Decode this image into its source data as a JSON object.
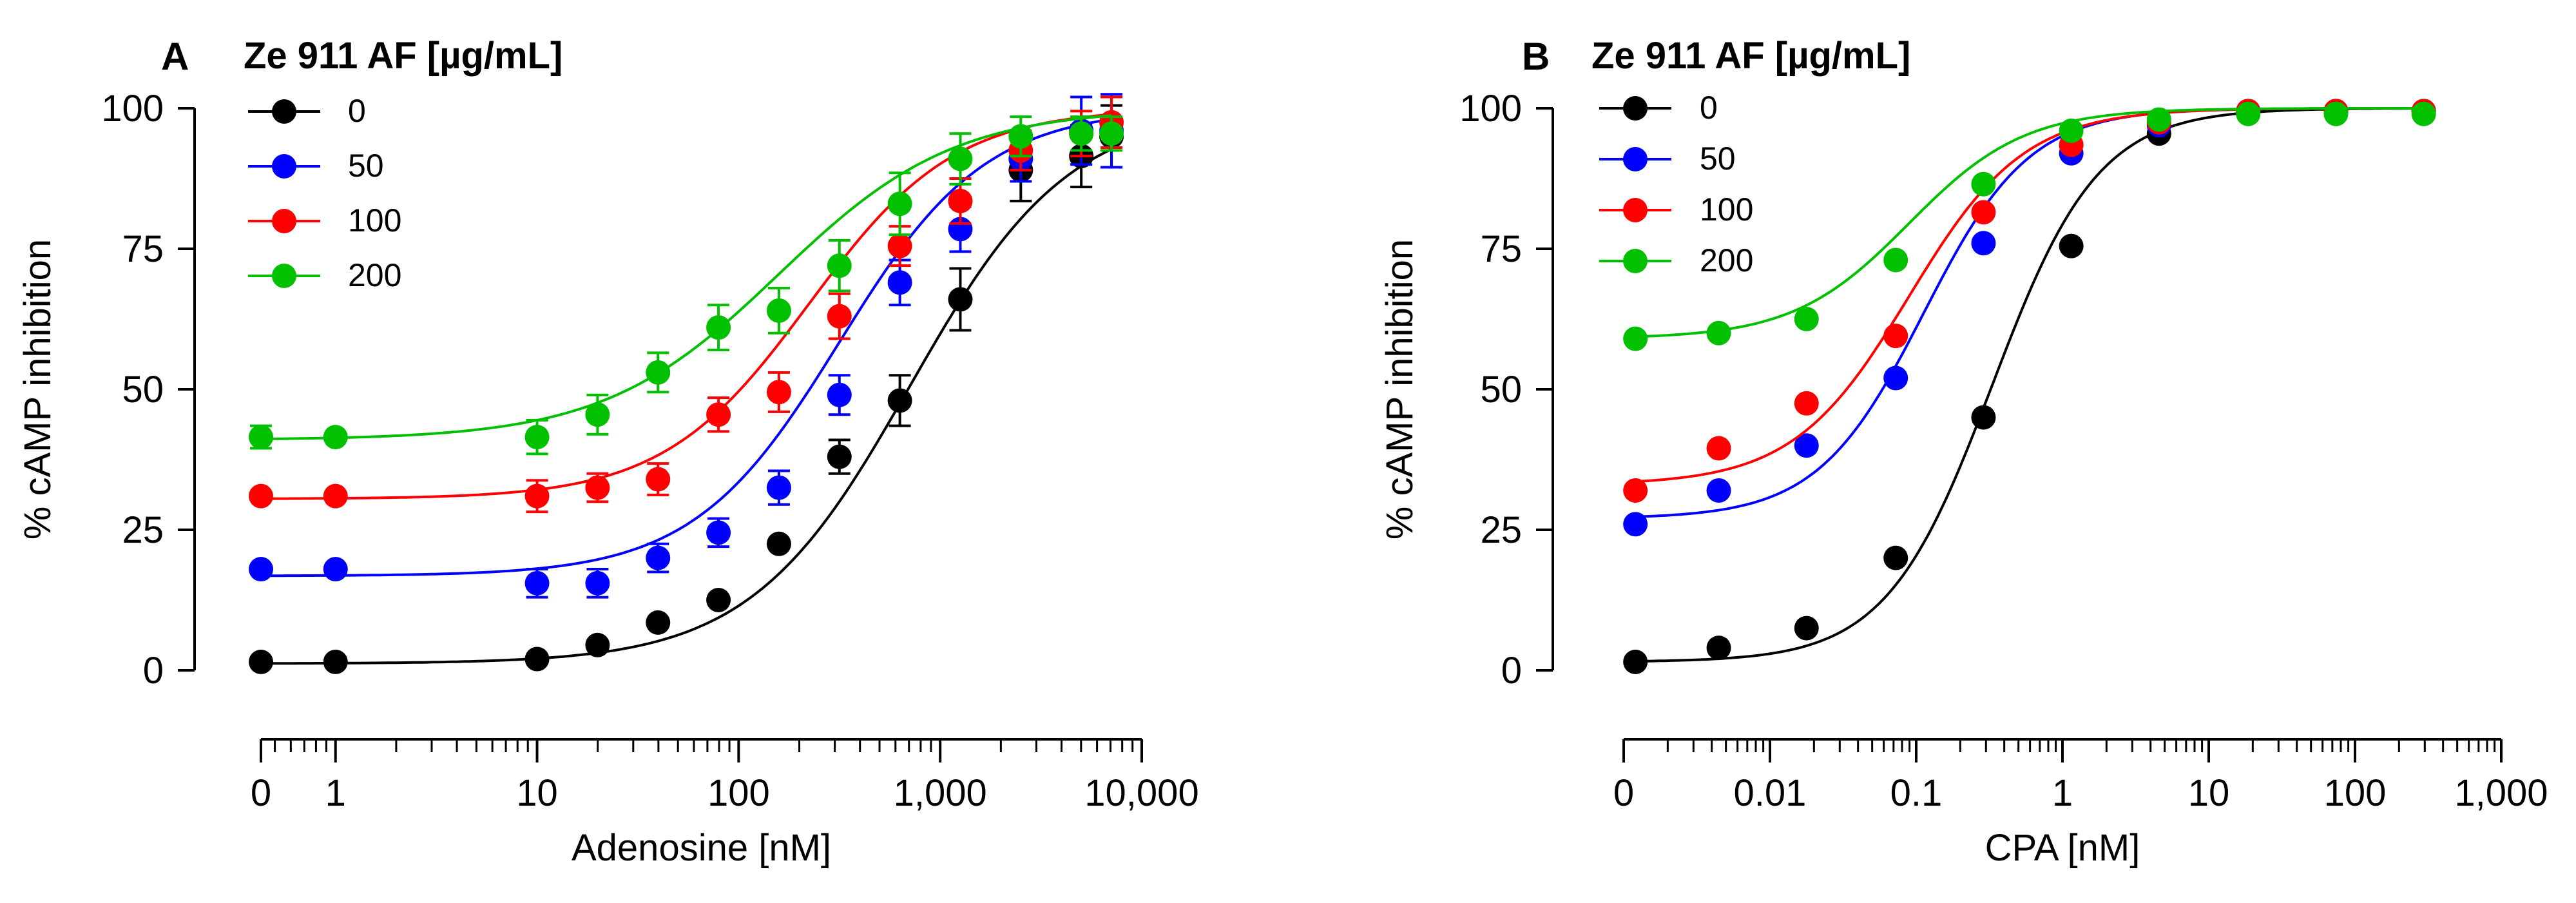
{
  "figure": {
    "caption_panels": [
      "A",
      "B"
    ]
  },
  "chart_data": [
    {
      "panel_label": "A",
      "type": "scatter",
      "fit": "sigmoid",
      "legend_title": "Ze 911 AF [µg/mL]",
      "xlabel": "Adenosine [nM]",
      "ylabel": "% cAMP inhibition",
      "xscale": "log",
      "xlim_log10": [
        -0.37,
        4.0
      ],
      "ylim": [
        0,
        100
      ],
      "x_ticks": [
        {
          "label": "0",
          "log10": -0.37
        },
        {
          "label": "1",
          "log10": 0
        },
        {
          "label": "10",
          "log10": 1
        },
        {
          "label": "100",
          "log10": 2
        },
        {
          "label": "1,000",
          "log10": 3
        },
        {
          "label": "10,000",
          "log10": 4
        }
      ],
      "y_ticks": [
        "0",
        "25",
        "50",
        "75",
        "100"
      ],
      "x": [
        "0",
        "1",
        "10",
        "20",
        "40",
        "80",
        "160",
        "320",
        "640",
        "1280",
        "2560",
        "5120",
        "7500"
      ],
      "x_log10": [
        -0.37,
        0,
        1,
        1.3,
        1.6,
        1.9,
        2.2,
        2.5,
        2.8,
        3.1,
        3.4,
        3.7,
        3.85
      ],
      "series": [
        {
          "name": "0",
          "color": "#000000",
          "values": [
            1.5,
            1.5,
            2,
            4.5,
            8.5,
            12.5,
            22.5,
            38,
            48,
            66,
            89,
            91.5,
            95
          ],
          "errors": [
            0,
            0,
            0,
            0,
            0,
            0,
            0,
            3,
            4.5,
            5.5,
            5.5,
            5.5,
            5.5
          ],
          "fit": {
            "bottom": 1.2,
            "top": 100,
            "log_ec50": 2.85,
            "hill": 1.1
          }
        },
        {
          "name": "50",
          "color": "#0000ff",
          "values": [
            18,
            18,
            15.5,
            15.5,
            20,
            24.5,
            32.5,
            49,
            69,
            78.5,
            91,
            96,
            96
          ],
          "errors": [
            0,
            0,
            2.5,
            2.5,
            2.5,
            2.5,
            3,
            3.5,
            4,
            4,
            4,
            6,
            6.5
          ],
          "fit": {
            "bottom": 16.8,
            "top": 100,
            "log_ec50": 2.5,
            "hill": 1.2
          }
        },
        {
          "name": "100",
          "color": "#ff0000",
          "values": [
            31,
            31,
            31,
            32.5,
            34,
            45.5,
            49.5,
            63,
            75.5,
            83.5,
            92.5,
            95.5,
            97.5
          ],
          "errors": [
            0,
            0,
            2.8,
            2.5,
            2.8,
            3,
            3.5,
            4,
            3.5,
            4,
            3.5,
            4,
            4.5
          ],
          "fit": {
            "bottom": 30.5,
            "top": 100,
            "log_ec50": 2.35,
            "hill": 1.2
          }
        },
        {
          "name": "200",
          "color": "#00c000",
          "values": [
            41.5,
            41.5,
            41.5,
            45.5,
            53,
            61,
            64,
            72,
            83,
            91,
            95,
            95.5,
            95.5
          ],
          "errors": [
            2,
            0,
            3,
            3.5,
            3.5,
            4,
            4,
            4.5,
            5.5,
            4.5,
            3.5,
            3,
            3
          ],
          "fit": {
            "bottom": 41,
            "top": 100,
            "log_ec50": 2.2,
            "hill": 1.0
          }
        }
      ]
    },
    {
      "panel_label": "B",
      "type": "scatter",
      "fit": "sigmoid",
      "legend_title": "Ze 911 AF [µg/mL]",
      "xlabel": "CPA [nM]",
      "ylabel": "% cAMP inhibition",
      "xscale": "log",
      "xlim_log10": [
        -3.0,
        3.0
      ],
      "ylim": [
        0,
        100
      ],
      "x_ticks": [
        {
          "label": "0",
          "log10": -3.0
        },
        {
          "label": "0.01",
          "log10": -2
        },
        {
          "label": "0.1",
          "log10": -1
        },
        {
          "label": "1",
          "log10": 0
        },
        {
          "label": "10",
          "log10": 1
        },
        {
          "label": "100",
          "log10": 2
        },
        {
          "label": "1,000",
          "log10": 3
        }
      ],
      "y_ticks": [
        "0",
        "25",
        "50",
        "75",
        "100"
      ],
      "x": [
        "0",
        "0.0045",
        "0.018",
        "0.072",
        "0.29",
        "1.15",
        "4.6",
        "18.4",
        "73.7",
        "295"
      ],
      "x_log10": [
        -2.92,
        -2.35,
        -1.75,
        -1.14,
        -0.54,
        0.06,
        0.66,
        1.27,
        1.87,
        2.47
      ],
      "series": [
        {
          "name": "0",
          "color": "#000000",
          "values": [
            1.5,
            4,
            7.5,
            20,
            45,
            75.5,
            95.5,
            99.5,
            99.5,
            99.5
          ],
          "fit": {
            "bottom": 1.5,
            "top": 100,
            "log_ec50": -0.48,
            "hill": 1.2
          }
        },
        {
          "name": "50",
          "color": "#0000ff",
          "values": [
            26,
            32,
            40,
            52,
            76,
            92,
            97,
            99.5,
            99.5,
            99.5
          ],
          "fit": {
            "bottom": 27,
            "top": 100,
            "log_ec50": -0.95,
            "hill": 1.2
          }
        },
        {
          "name": "100",
          "color": "#ff0000",
          "values": [
            32,
            39.5,
            47.5,
            59.5,
            81.5,
            93.5,
            97.5,
            99.5,
            99.5,
            99.5
          ],
          "fit": {
            "bottom": 33,
            "top": 100,
            "log_ec50": -1.05,
            "hill": 1.1
          }
        },
        {
          "name": "200",
          "color": "#00c000",
          "values": [
            59,
            60,
            62.5,
            73,
            86.5,
            96,
            98,
            99,
            99,
            99
          ],
          "fit": {
            "bottom": 59,
            "top": 100,
            "log_ec50": -1.05,
            "hill": 1.1
          }
        }
      ]
    }
  ]
}
